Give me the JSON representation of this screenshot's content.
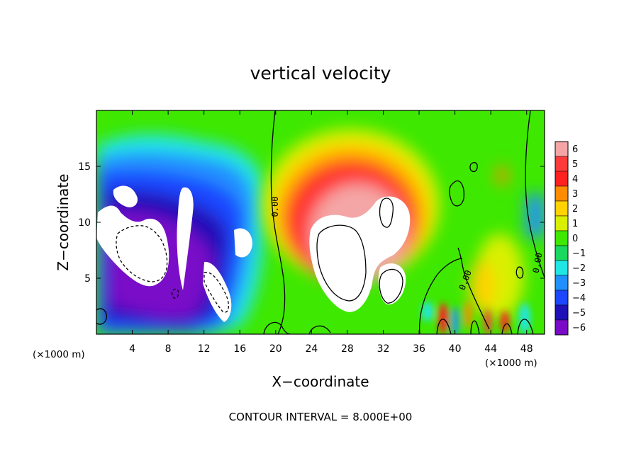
{
  "chart_data": {
    "type": "heatmap",
    "title": "vertical velocity",
    "xlabel": "X−coordinate",
    "ylabel": "Z−coordinate",
    "x_unit_left": "(×1000 m)",
    "x_unit_right": "(×1000 m)",
    "xlim": [
      0,
      50
    ],
    "ylim": [
      0,
      20
    ],
    "x_ticks": [
      4,
      8,
      12,
      16,
      20,
      24,
      28,
      32,
      36,
      40,
      44,
      48
    ],
    "x_tick_labels": [
      "4",
      "8",
      "12",
      "16",
      "20",
      "24",
      "28",
      "32",
      "36",
      "40",
      "44",
      "48"
    ],
    "y_ticks": [
      5,
      10,
      15
    ],
    "y_tick_labels": [
      "5",
      "10",
      "15"
    ],
    "colorbar": {
      "levels": [
        6,
        5,
        4,
        3,
        2,
        1,
        0,
        -1,
        -2,
        -3,
        -4,
        -5,
        -6
      ],
      "labels": [
        "6",
        "5",
        "4",
        "3",
        "2",
        "1",
        "0",
        "−1",
        "−2",
        "−3",
        "−4",
        "−5",
        "−6"
      ],
      "colors": [
        "#f4a6a6",
        "#ff3a3a",
        "#ff2020",
        "#ff8c00",
        "#ffd200",
        "#d8f000",
        "#3ee800",
        "#18d860",
        "#20e6e6",
        "#2090ff",
        "#1c46ff",
        "#2010b8",
        "#7a0ac8"
      ]
    },
    "features": [
      {
        "kind": "downdraft",
        "x": 6,
        "z": 8,
        "w": -6
      },
      {
        "kind": "downdraft",
        "x": 12.5,
        "z": 6,
        "w": -6
      },
      {
        "kind": "updraft",
        "x": 29,
        "z": 8,
        "w": 6
      },
      {
        "kind": "updraft",
        "x": 33,
        "z": 11,
        "w": 6
      },
      {
        "kind": "updraft",
        "x": 34,
        "z": 4,
        "w": 6
      }
    ],
    "contour_labels": [
      "0.00",
      "0.00",
      "0.00"
    ],
    "grid": false
  },
  "footer": {
    "contour_interval": "CONTOUR INTERVAL = 8.000E+00"
  }
}
